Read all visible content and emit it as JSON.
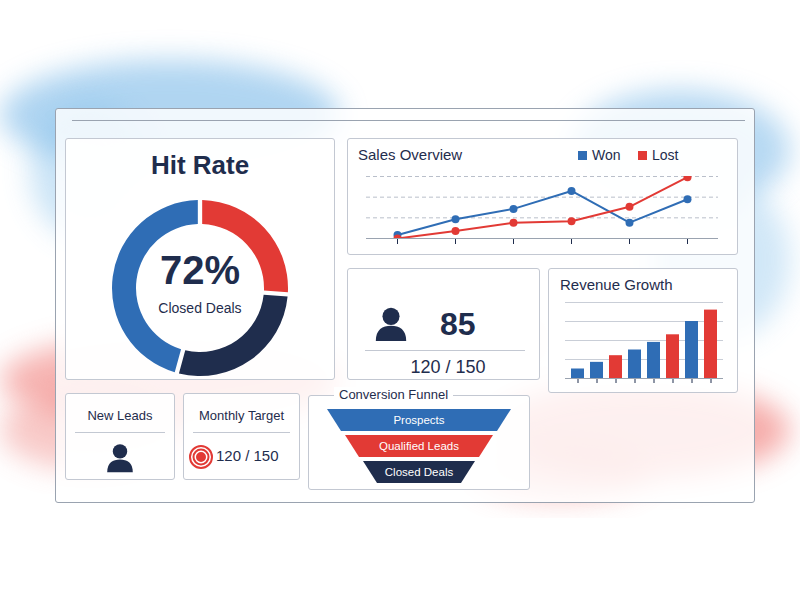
{
  "chart_data": [
    {
      "type": "pie",
      "title": "Hit Rate",
      "categories": [
        null,
        null,
        null
      ],
      "values": [
        26,
        28,
        46
      ],
      "colors": [
        "#e23a35",
        "#1f2d4d",
        "#2f6db5"
      ],
      "center_text": [
        "72%",
        "Closed Deals"
      ],
      "tick_labels": false
    },
    {
      "type": "line",
      "title": "Sales Overview",
      "categories": [
        null,
        null,
        null,
        null,
        null,
        null
      ],
      "series": [
        {
          "name": "Won",
          "color": "#2f6db5",
          "values": [
            5,
            28,
            43,
            69,
            23,
            57
          ],
          "marker": "circle"
        },
        {
          "name": "Lost",
          "color": "#e23a35",
          "values": [
            0,
            11,
            23,
            25,
            46,
            89
          ],
          "marker": "circle"
        }
      ],
      "ylim": [
        0,
        90
      ],
      "yticks": [
        0,
        30,
        60,
        90
      ],
      "grid": true,
      "legend": "top-right",
      "tick_labels": false
    },
    {
      "type": "bar",
      "title": "Revenue Growth",
      "categories": [
        null,
        null,
        null,
        null,
        null,
        null,
        null,
        null
      ],
      "values": [
        10,
        17,
        24,
        30,
        38,
        46,
        60,
        72
      ],
      "colors": [
        "#2f6db5",
        "#2f6db5",
        "#e23a35",
        "#2f6db5",
        "#2f6db5",
        "#e23a35",
        "#2f6db5",
        "#e23a35"
      ],
      "ylim": [
        0,
        80
      ],
      "yticks": [
        0,
        20,
        40,
        60,
        80
      ],
      "grid": true,
      "tick_labels": false
    }
  ],
  "kpi": {
    "value": 85,
    "text": "120 / 150"
  },
  "new_leads": {
    "title": "New Leads"
  },
  "monthly_target": {
    "title": "Monthly Target",
    "text": "120 / 150"
  },
  "conversion_funnel": {
    "title": "Conversion Funnel",
    "stages": [
      {
        "label": "Prospects",
        "color": "#2f6db5"
      },
      {
        "label": "Qualified Leads",
        "color": "#e23a35"
      },
      {
        "label": "Closed Deals",
        "color": "#1f2d4d"
      }
    ]
  }
}
